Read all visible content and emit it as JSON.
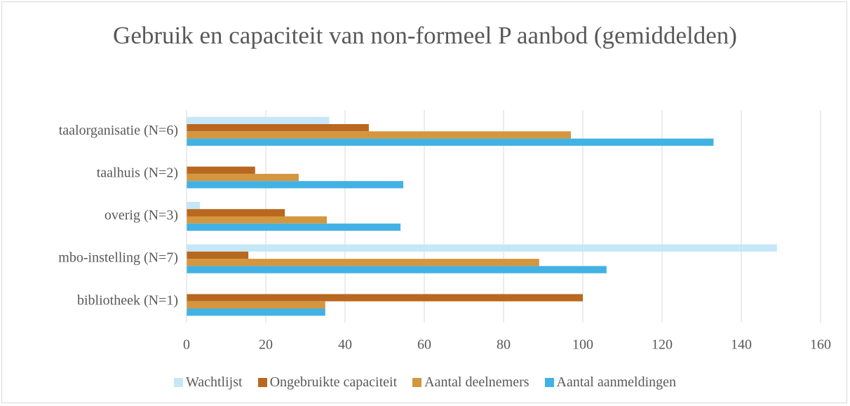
{
  "chart_data": {
    "type": "barh",
    "title": "Gebruik en capaciteit van non-formeel P aanbod (gemiddelden)",
    "categories": [
      "taalorganisatie (N=6)",
      "taalhuis (N=2)",
      "overig (N=3)",
      "mbo-instelling (N=7)",
      "bibliotheek (N=1)"
    ],
    "series": [
      {
        "name": "Wachtlijst",
        "color": "#c6e7f7",
        "values": [
          36,
          0,
          3.4,
          149,
          0
        ]
      },
      {
        "name": "Ongebruikte capaciteit",
        "color": "#b8681f",
        "values": [
          46,
          17.3,
          24.8,
          15.6,
          100
        ]
      },
      {
        "name": "Aantal deelnemers",
        "color": "#d4963f",
        "values": [
          97,
          28.3,
          35.4,
          89,
          35
        ]
      },
      {
        "name": "Aantal aanmeldingen",
        "color": "#41b2e3",
        "values": [
          133,
          54.7,
          54,
          106,
          35
        ]
      }
    ],
    "xlim": [
      0,
      160
    ],
    "xticks": [
      0,
      20,
      40,
      60,
      80,
      100,
      120,
      140,
      160
    ],
    "grid": true,
    "legend": "bottom"
  }
}
